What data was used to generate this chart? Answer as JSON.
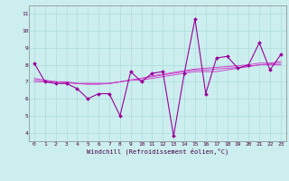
{
  "x": [
    0,
    1,
    2,
    3,
    4,
    5,
    6,
    7,
    8,
    9,
    10,
    11,
    12,
    13,
    14,
    15,
    16,
    17,
    18,
    19,
    20,
    21,
    22,
    23
  ],
  "y_main": [
    8.1,
    7.0,
    6.9,
    6.9,
    6.6,
    6.0,
    6.3,
    6.3,
    5.0,
    7.6,
    7.0,
    7.5,
    7.6,
    3.8,
    7.5,
    10.7,
    6.3,
    8.4,
    8.5,
    7.8,
    8.0,
    9.3,
    7.7,
    8.6
  ],
  "y_trend1": [
    7.0,
    7.0,
    7.0,
    7.0,
    6.9,
    6.9,
    6.9,
    6.9,
    7.0,
    7.1,
    7.1,
    7.2,
    7.3,
    7.4,
    7.5,
    7.6,
    7.6,
    7.6,
    7.7,
    7.8,
    7.9,
    8.0,
    8.0,
    8.0
  ],
  "y_trend2": [
    7.1,
    7.05,
    7.0,
    6.95,
    6.9,
    6.9,
    6.9,
    6.9,
    7.0,
    7.1,
    7.2,
    7.3,
    7.4,
    7.5,
    7.6,
    7.7,
    7.7,
    7.75,
    7.8,
    7.85,
    7.9,
    8.0,
    8.05,
    8.1
  ],
  "y_trend3": [
    7.2,
    7.1,
    7.0,
    6.95,
    6.9,
    6.85,
    6.85,
    6.9,
    7.0,
    7.1,
    7.2,
    7.35,
    7.45,
    7.55,
    7.65,
    7.75,
    7.8,
    7.85,
    7.9,
    7.95,
    8.0,
    8.1,
    8.1,
    8.2
  ],
  "line_color": "#990099",
  "trend_color": "#cc44cc",
  "bg_color": "#cceeee",
  "grid_color": "#aadddd",
  "xlabel": "Windchill (Refroidissement éolien,°C)",
  "ylim": [
    3.5,
    11.5
  ],
  "xlim": [
    -0.5,
    23.5
  ],
  "yticks": [
    4,
    5,
    6,
    7,
    8,
    9,
    10,
    11
  ],
  "xticks": [
    0,
    1,
    2,
    3,
    4,
    5,
    6,
    7,
    8,
    9,
    10,
    11,
    12,
    13,
    14,
    15,
    16,
    17,
    18,
    19,
    20,
    21,
    22,
    23
  ],
  "tick_fontsize": 4.5,
  "xlabel_fontsize": 5.0
}
